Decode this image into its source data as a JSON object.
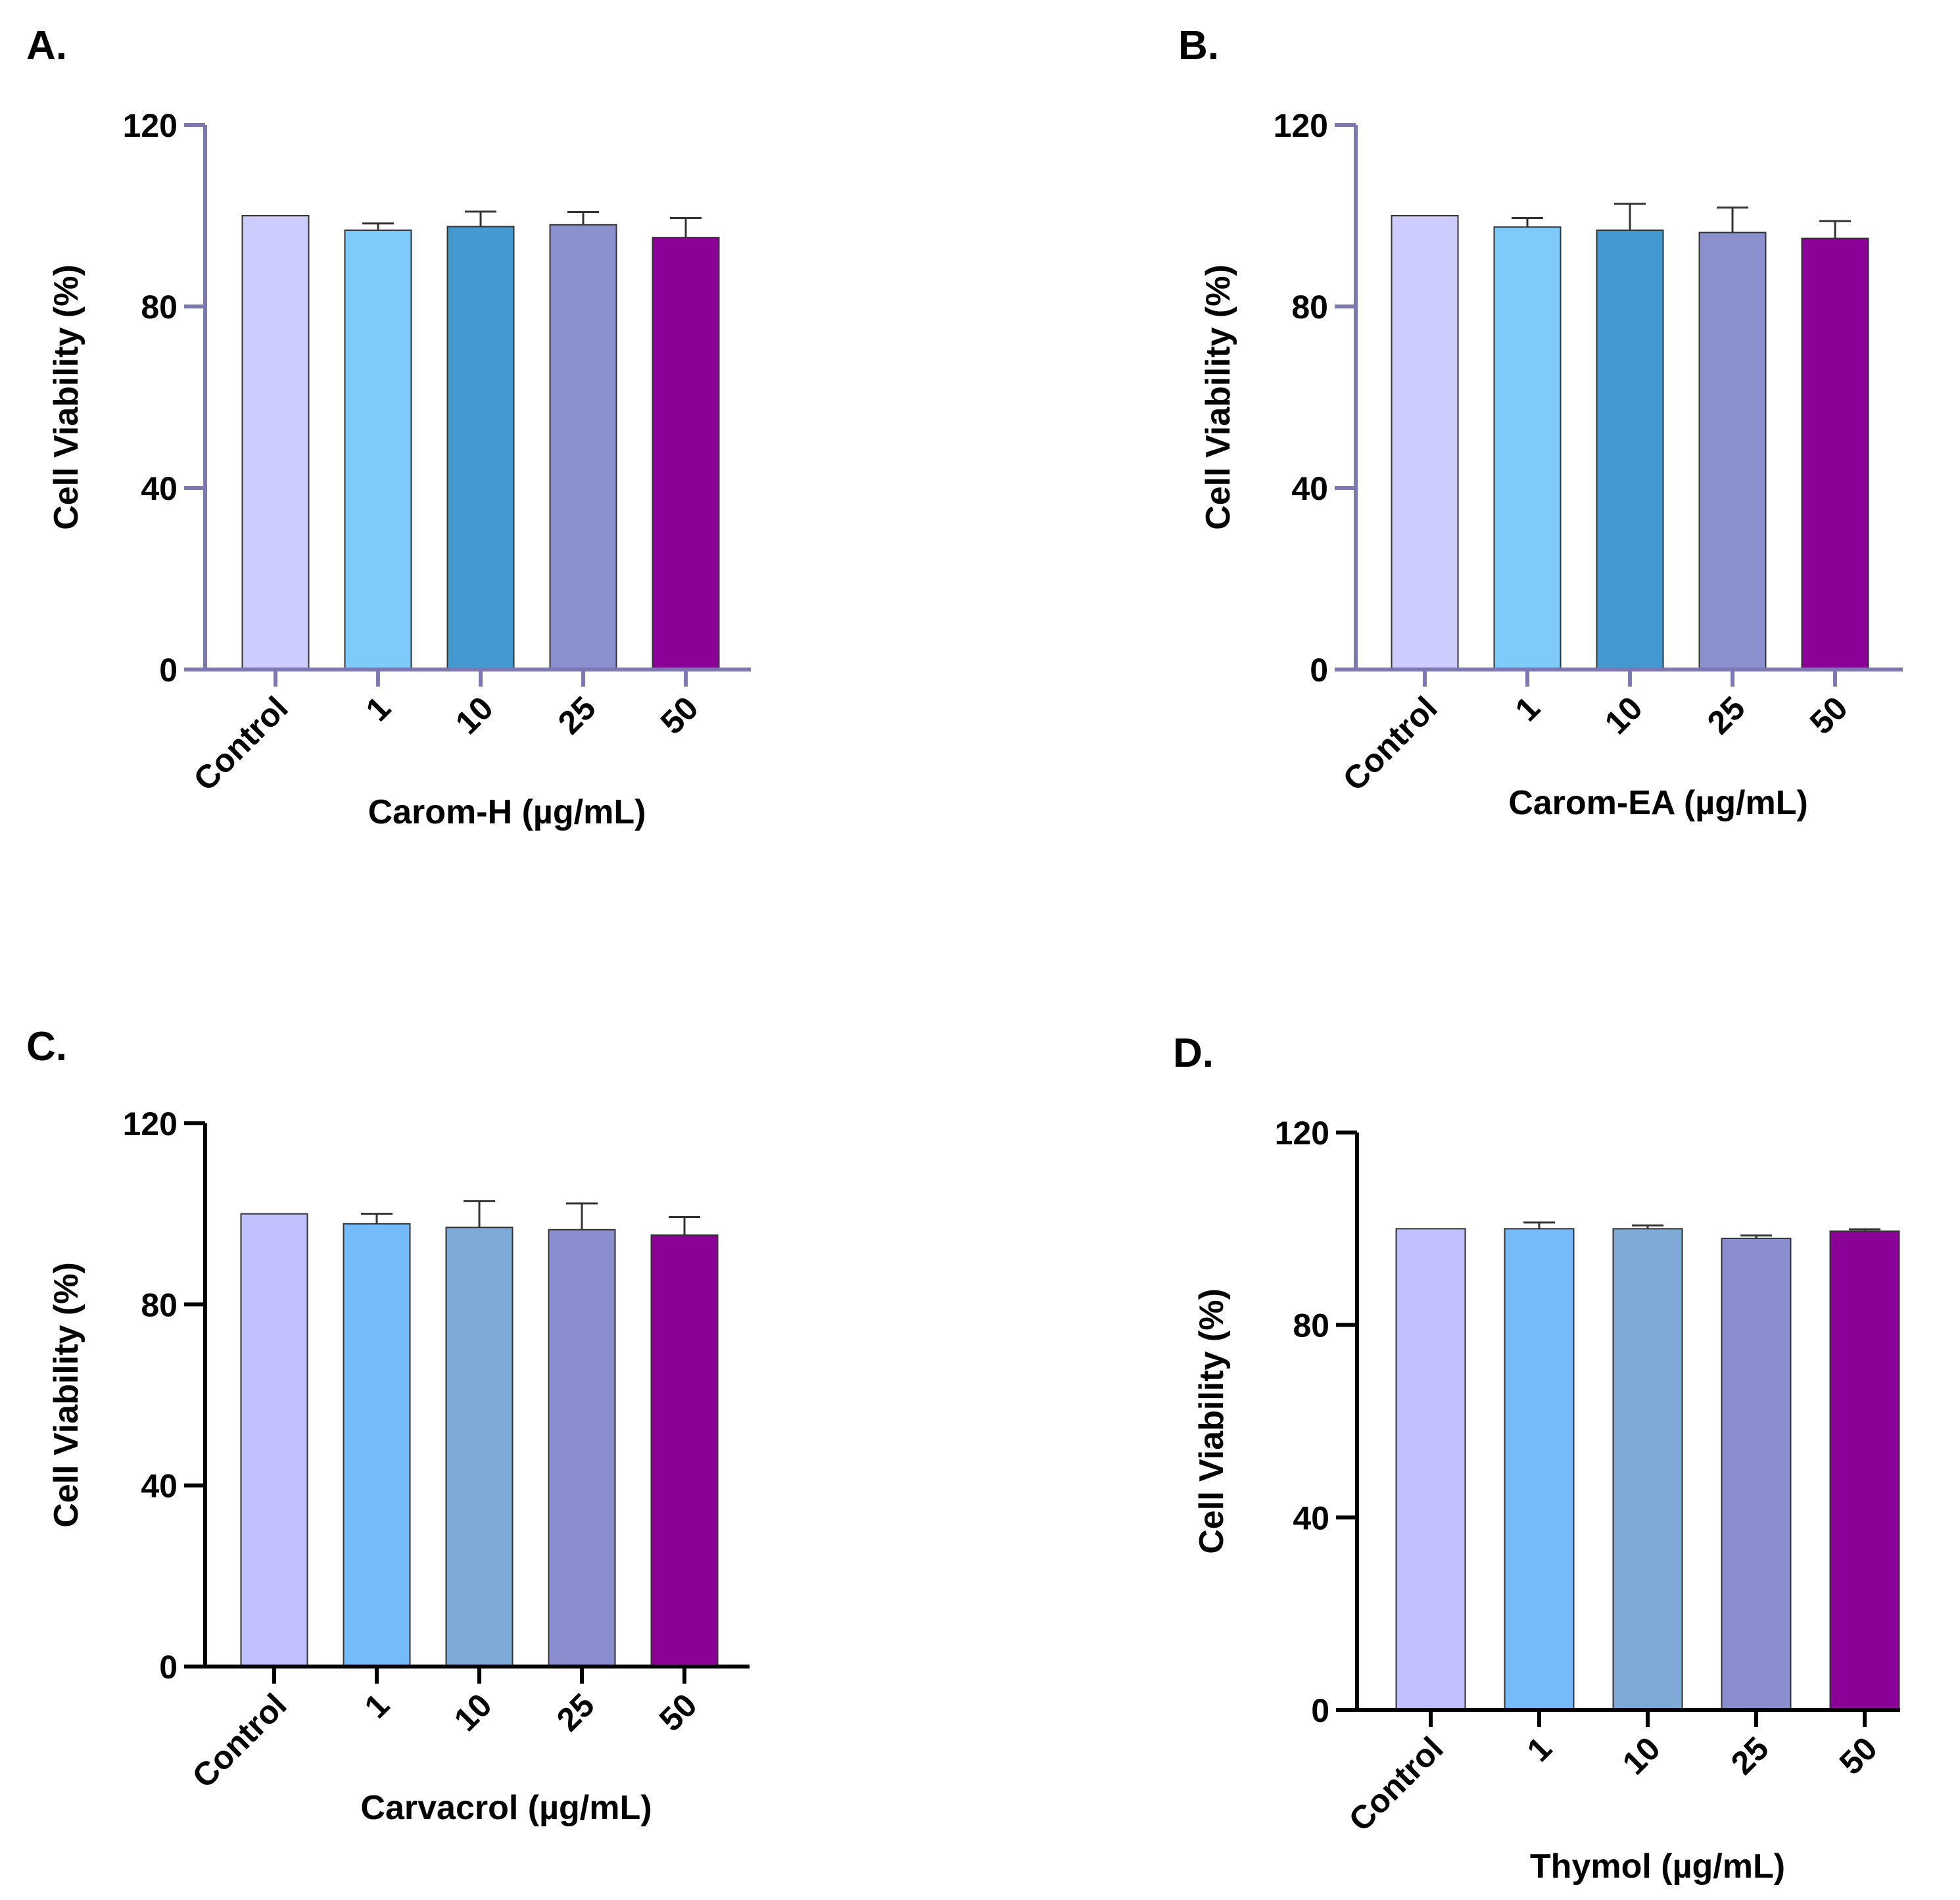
{
  "chart_data": [
    {
      "type": "bar",
      "panel": "A.",
      "title": "",
      "xlabel": "Carom-H (µg/mL)",
      "ylabel": "Cell Viability (%)",
      "ylim": [
        0,
        120
      ],
      "yticks": [
        "0",
        "40",
        "80",
        "120"
      ],
      "categories": [
        "Control",
        "1",
        "10",
        "25",
        "50"
      ],
      "values": [
        100,
        96.8,
        97.6,
        98.0,
        95.2
      ],
      "errors": [
        0,
        1.5,
        3.3,
        2.8,
        4.3
      ],
      "colors": [
        "#CCCCFF",
        "#7ECBFB",
        "#4499D0",
        "#8B91CE",
        "#8B0096"
      ],
      "axis_color": "#7C78B2"
    },
    {
      "type": "bar",
      "panel": "B.",
      "title": "",
      "xlabel": "Carom-EA (µg/mL)",
      "ylabel": "Cell Viability (%)",
      "ylim": [
        0,
        120
      ],
      "yticks": [
        "0",
        "40",
        "80",
        "120"
      ],
      "categories": [
        "Control",
        "1",
        "10",
        "25",
        "50"
      ],
      "values": [
        100,
        97.5,
        96.8,
        96.3,
        95.0
      ],
      "errors": [
        0,
        2.0,
        5.8,
        5.5,
        3.8
      ],
      "colors": [
        "#CCCCFF",
        "#7ECBFB",
        "#4499D0",
        "#8B91CE",
        "#8B0096"
      ],
      "axis_color": "#7C78B2"
    },
    {
      "type": "bar",
      "panel": "C.",
      "title": "",
      "xlabel": "Carvacrol (µg/mL)",
      "ylabel": "Cell Viability (%)",
      "ylim": [
        0,
        120
      ],
      "yticks": [
        "0",
        "40",
        "80",
        "120"
      ],
      "categories": [
        "Control",
        "1",
        "10",
        "25",
        "50"
      ],
      "values": [
        100,
        97.8,
        97.0,
        96.5,
        95.3
      ],
      "errors": [
        0,
        2.2,
        5.8,
        5.8,
        4.0
      ],
      "colors": [
        "#C0BFFF",
        "#75BAF9",
        "#7DAAD6",
        "#8A8ECE",
        "#8B0096"
      ],
      "axis_color": "#000000"
    },
    {
      "type": "bar",
      "panel": "D.",
      "title": "",
      "xlabel": "Thymol (µg/mL)",
      "ylabel": "Cell Viability (%)",
      "ylim": [
        0,
        120
      ],
      "yticks": [
        "0",
        "40",
        "80",
        "120"
      ],
      "categories": [
        "Control",
        "1",
        "10",
        "25",
        "50"
      ],
      "values": [
        100,
        100.0,
        100.0,
        98.0,
        99.5
      ],
      "errors": [
        0,
        1.3,
        0.7,
        0.6,
        0.4
      ],
      "colors": [
        "#C0BFFF",
        "#75BAF9",
        "#7DAAD6",
        "#8A8ECE",
        "#8B0096"
      ],
      "axis_color": "#000000"
    }
  ]
}
